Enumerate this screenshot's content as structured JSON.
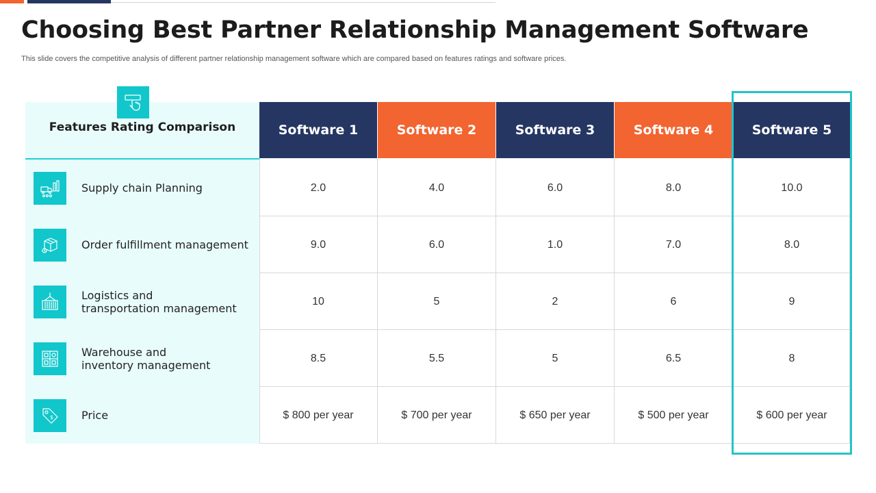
{
  "title": "Choosing Best Partner Relationship Management Software",
  "subtitle": "This slide covers the competitive analysis of different partner relationship management software which are compared based on features ratings and software prices.",
  "table": {
    "header_label": "Features Rating Comparison",
    "header_icon": "hand-pointer-icon",
    "columns": [
      "Software  1",
      "Software  2",
      "Software  3",
      "Software  4",
      "Software  5"
    ],
    "rows": [
      {
        "label": "Supply chain Planning",
        "icon": "supply-chain-icon",
        "values": [
          "2.0",
          "4.0",
          "6.0",
          "8.0",
          "10.0"
        ]
      },
      {
        "label": "Order fulfillment management",
        "icon": "package-icon",
        "values": [
          "9.0",
          "6.0",
          "1.0",
          "7.0",
          "8.0"
        ]
      },
      {
        "label": "Logistics and\ntransportation management",
        "icon": "container-crane-icon",
        "values": [
          "10",
          "5",
          "2",
          "6",
          "9"
        ]
      },
      {
        "label": "Warehouse and\ninventory management",
        "icon": "warehouse-icon",
        "values": [
          "8.5",
          "5.5",
          "5",
          "6.5",
          "8"
        ]
      },
      {
        "label": "Price",
        "icon": "price-tag-icon",
        "values": [
          "$ 800 per year",
          "$ 700 per year",
          "$ 650 per year",
          "$ 500 per year",
          "$ 600 per year"
        ]
      }
    ],
    "highlighted_column": "Software  5"
  },
  "colors": {
    "navy": "#253662",
    "orange": "#f26430",
    "teal": "#11c7cc",
    "highlight_border": "#23c4c9",
    "panel_bg": "#e9fcfc"
  }
}
